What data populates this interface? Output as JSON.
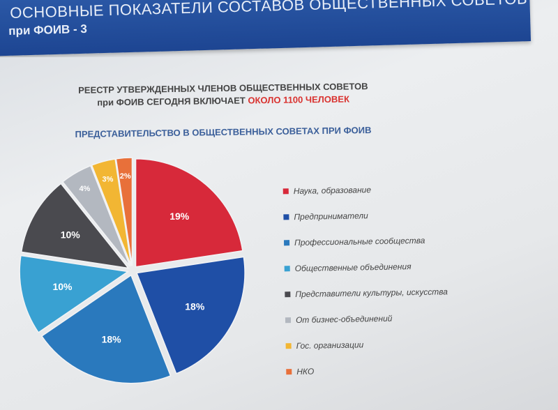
{
  "header": {
    "title": "ОСНОВНЫЕ ПОКАЗАТЕЛИ СОСТАВОВ ОБЩЕСТВЕННЫХ СОВЕТОВ",
    "subtitle": "при ФОИВ - 3"
  },
  "registry": {
    "line1": "РЕЕСТР УТВЕРЖДЕННЫХ ЧЛЕНОВ ОБЩЕСТВЕННЫХ СОВЕТОВ",
    "line2_prefix": "при ФОИВ СЕГОДНЯ ВКЛЮЧАЕТ",
    "line2_highlight": "ОКОЛО 1100 ЧЕЛОВЕК"
  },
  "colors": {
    "accent": "#d9322f",
    "header": "#1d4592"
  },
  "chart_data": {
    "type": "pie",
    "title": "ПРЕДСТАВИТЕЛЬСТВО В ОБЩЕСТВЕННЫХ СОВЕТАХ ПРИ ФОИВ",
    "legend_position": "right",
    "slices": [
      {
        "label": "Наука, образование",
        "value": 19,
        "value_label": "19%",
        "color": "#d7293a"
      },
      {
        "label": "Предприниматели",
        "value": 18,
        "value_label": "18%",
        "color": "#1f4fa6"
      },
      {
        "label": "Профессиональные сообщества",
        "value": 18,
        "value_label": "18%",
        "color": "#2a79bd"
      },
      {
        "label": "Общественные объединения",
        "value": 10,
        "value_label": "10%",
        "color": "#39a1d2"
      },
      {
        "label": "Представители культуры, искусства",
        "value": 10,
        "value_label": "10%",
        "color": "#4a4a4f"
      },
      {
        "label": "От бизнес-объединений",
        "value": 4,
        "value_label": "4%",
        "color": "#b3b8c0"
      },
      {
        "label": "Гос. организации",
        "value": 3,
        "value_label": "3%",
        "color": "#f2b633"
      },
      {
        "label": "НКО",
        "value": 2,
        "value_label": "2%",
        "color": "#e8703a"
      }
    ]
  }
}
